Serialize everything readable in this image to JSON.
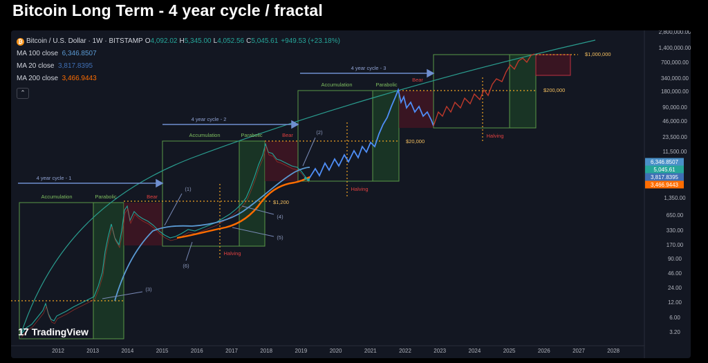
{
  "title": "Bitcoin Long Term - 4 year cycle / fractal",
  "legend": {
    "symbol": "Bitcoin / U.S. Dollar · 1W · BITSTAMP",
    "ohlc": [
      {
        "k": "O",
        "v": "4,092.02"
      },
      {
        "k": "H",
        "v": "5,345.00"
      },
      {
        "k": "L",
        "v": "4,052.56"
      },
      {
        "k": "C",
        "v": "5,045.61"
      }
    ],
    "change": "+949.53 (+23.18%)",
    "ma": [
      {
        "label": "MA 100 close",
        "value": "6,346.8507",
        "color": "#5b9bd5"
      },
      {
        "label": "MA 20 close",
        "value": "3,817.8395",
        "color": "#3f6fb5"
      },
      {
        "label": "MA 200 close",
        "value": "3,466.9443",
        "color": "#ff6d00"
      }
    ],
    "collapse_icon": "chevron-up"
  },
  "logo": {
    "mark": "17",
    "text": "TradingView"
  },
  "chart_data": {
    "type": "line",
    "x_ticks": [
      "2012",
      "2013",
      "2014",
      "2015",
      "2016",
      "2017",
      "2018",
      "2019",
      "2020",
      "2021",
      "2022",
      "2023",
      "2024",
      "2025",
      "2026",
      "2027",
      "2028"
    ],
    "y_ticks": [
      "2,800,000.00",
      "1,400,000.00",
      "700,000.00",
      "340,000.00",
      "180,000.00",
      "90,000.00",
      "46,000.00",
      "23,500.00",
      "11,500.00",
      "1,350.00",
      "650.00",
      "330.00",
      "170.00",
      "90.00",
      "46.00",
      "24.00",
      "12.00",
      "6.00",
      "3.20"
    ],
    "y_scale": "log",
    "price_labels": [
      {
        "text": "6,346.8507",
        "color": "#4a90c8"
      },
      {
        "text": "5,045.61",
        "color": "#26a69a"
      },
      {
        "text": "3,817.8395",
        "color": "#3f6fb5"
      },
      {
        "text": "3,466.9443",
        "color": "#ff6d00"
      }
    ],
    "level_labels": [
      "$1,000,000",
      "$200,000",
      "$20,000",
      "$1,200"
    ],
    "cycle_labels": [
      "4 year cycle - 1",
      "4 year cycle - 2",
      "4 year cycle - 3"
    ],
    "phase_labels": {
      "accumulation": "Accumulation",
      "parabolic": "Parabolic",
      "bear": "Bear",
      "halving": "Halving"
    },
    "annotations": [
      "(1)",
      "(2)",
      "(3)",
      "(4)",
      "(5)",
      "(6)"
    ],
    "series": [
      {
        "name": "BTC/USD",
        "color": "#26a69a"
      },
      {
        "name": "MA 100 close",
        "color": "#5b9bd5"
      },
      {
        "name": "MA 200 close",
        "color": "#ff6d00"
      },
      {
        "name": "Projection",
        "color": "#4f8ef7"
      }
    ]
  },
  "colors": {
    "accumulation": "#5a9a48",
    "parabolic_fill": "#1f4d28",
    "bear_fill": "#4a1522",
    "bear_text": "#e04040",
    "level_line": "#f5a623",
    "halving_line": "#f5a623",
    "cycle_arrow": "#6f8fd0",
    "trend": "#2a9d8f"
  }
}
